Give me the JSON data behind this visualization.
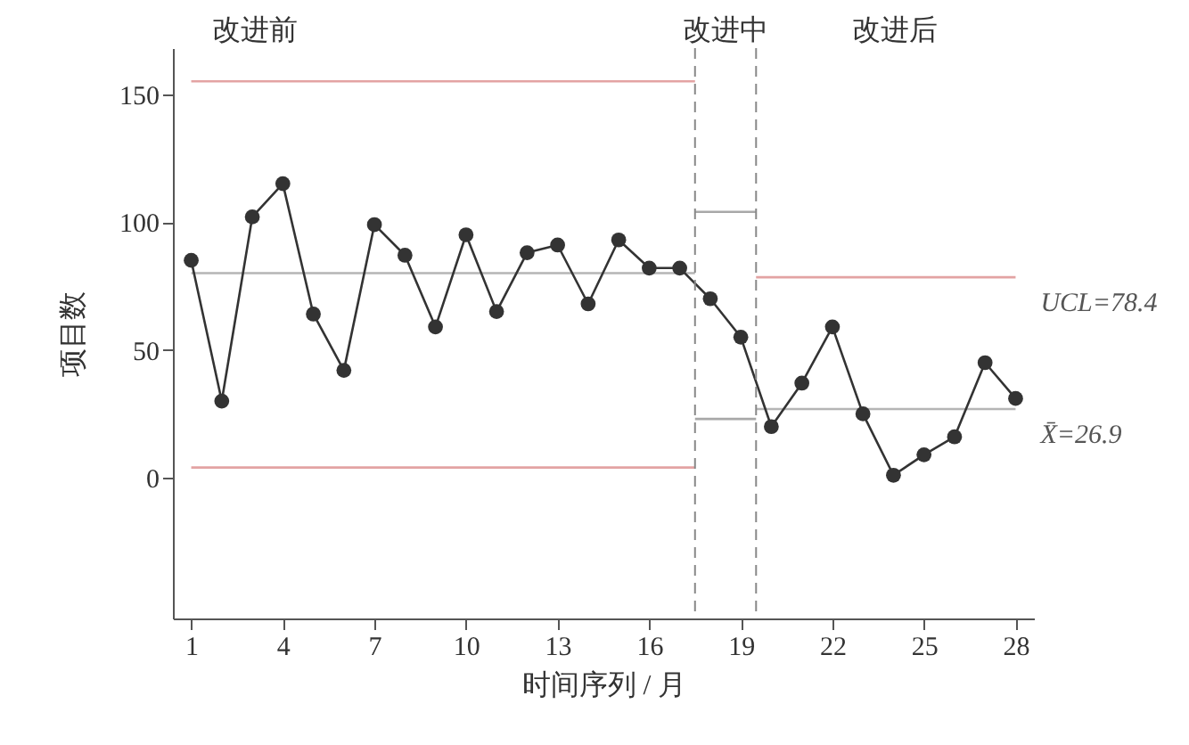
{
  "chart_data": {
    "type": "line",
    "xlabel": "时间序列 / 月",
    "ylabel": "项目数",
    "xlim": [
      0.4,
      28.6
    ],
    "ylim": [
      -55,
      168
    ],
    "xticks": [
      1,
      4,
      7,
      10,
      13,
      16,
      19,
      22,
      25,
      28
    ],
    "yticks": [
      0,
      50,
      100,
      150
    ],
    "grid": false,
    "marker": "circle",
    "series": [
      {
        "color": "#333333",
        "x": [
          1,
          2,
          3,
          4,
          5,
          6,
          7,
          8,
          9,
          10,
          11,
          12,
          13,
          14,
          15,
          16,
          17,
          18,
          19,
          20,
          21,
          22,
          23,
          24,
          25,
          26,
          27,
          28
        ],
        "values": [
          85,
          30,
          102,
          115,
          64,
          42,
          99,
          87,
          59,
          95,
          65,
          88,
          91,
          68,
          93,
          82,
          82,
          70,
          55,
          20,
          37,
          59,
          25,
          1,
          9,
          16,
          45,
          31
        ]
      },
      {
        "color": "#e3a3a3",
        "marker": "none",
        "x": [
          1,
          17.5
        ],
        "values": [
          155,
          155
        ]
      },
      {
        "color": "#b5b5b5",
        "marker": "none",
        "x": [
          1,
          17.5
        ],
        "values": [
          80,
          80
        ]
      },
      {
        "color": "#e3a3a3",
        "marker": "none",
        "x": [
          1,
          17.5
        ],
        "values": [
          4,
          4
        ]
      },
      {
        "color": "#a8a8a8",
        "marker": "none",
        "x": [
          17.5,
          19.5
        ],
        "values": [
          104,
          104
        ]
      },
      {
        "color": "#a8a8a8",
        "marker": "none",
        "x": [
          17.5,
          19.5
        ],
        "values": [
          23,
          23
        ]
      },
      {
        "color": "#e3a3a3",
        "marker": "none",
        "x": [
          19.5,
          28
        ],
        "values": [
          78.4,
          78.4
        ]
      },
      {
        "color": "#b5b5b5",
        "marker": "none",
        "x": [
          19.5,
          28
        ],
        "values": [
          26.9,
          26.9
        ]
      }
    ],
    "ref_lines": [
      {
        "axis": "x",
        "value": 17.5,
        "color": "#888888",
        "line_style": "dashed"
      },
      {
        "axis": "x",
        "value": 19.5,
        "color": "#888888",
        "line_style": "dashed"
      }
    ],
    "annotations": [
      "改进前",
      "改进中",
      "改进后",
      {
        "text": "UCL=78.4",
        "x": 28,
        "y": 78.4
      },
      {
        "text": "X̄=26.9",
        "x": 28,
        "y": 26.9
      }
    ]
  }
}
